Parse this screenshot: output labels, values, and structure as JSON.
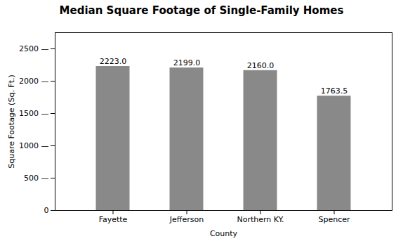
{
  "chart_data": {
    "type": "bar",
    "title": "Median Square Footage of Single-Family Homes",
    "categories": [
      "Fayette",
      "Jefferson",
      "Northern KY.",
      "Spencer"
    ],
    "values": [
      2223.0,
      2199.0,
      2160.0,
      1763.5
    ],
    "value_labels": [
      "2223.0",
      "2199.0",
      "2160.0",
      "1763.5"
    ],
    "data_labels": true,
    "color": "#898989",
    "xlabel": "County",
    "ylabel": "Square Footage (Sq. Ft.)",
    "ylim": [
      0,
      2750
    ],
    "yticks": [
      0,
      {
        "value": 500,
        "label": "500 —"
      },
      {
        "value": 1000,
        "label": "1000 —"
      },
      {
        "value": 1500,
        "label": "1500 —"
      },
      {
        "value": 2000,
        "label": "2000 —"
      },
      {
        "value": 2500,
        "label": "2500 —"
      }
    ],
    "grid": false
  }
}
